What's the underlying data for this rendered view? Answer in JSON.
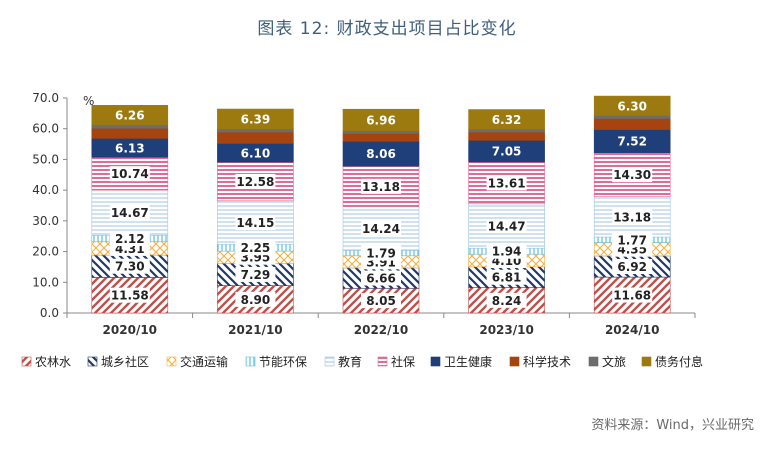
{
  "figure_title": "图表 12: 财政支出项目占比变化",
  "source_note": "资料来源：Wind，兴业研究",
  "colors": {
    "农林水": "#c0504d",
    "城乡社区": "#1f3864",
    "交通运输": "#f5b041",
    "节能环保": "#5bc0de",
    "教育": "#9ec5e8",
    "社保": "#e06b97",
    "卫生健康": "#1f3f7a",
    "科学技术": "#a5440f",
    "文旅": "#6d6d6d",
    "债务付息": "#9c7a10"
  },
  "chart_data": {
    "type": "bar",
    "stacked": true,
    "categories": [
      "2020/10",
      "2021/10",
      "2022/10",
      "2023/10",
      "2024/10"
    ],
    "ylabel": "%",
    "ylim": [
      0,
      70
    ],
    "yticks": [
      "0.0",
      "10.0",
      "20.0",
      "30.0",
      "40.0",
      "50.0",
      "60.0",
      "70.0"
    ],
    "legend_position": "bottom",
    "series": [
      {
        "name": "农林水",
        "values": [
          11.58,
          8.9,
          8.05,
          8.24,
          11.68
        ],
        "labeled": true
      },
      {
        "name": "城乡社区",
        "values": [
          7.3,
          7.29,
          6.66,
          6.81,
          6.92
        ],
        "labeled": true
      },
      {
        "name": "交通运输",
        "values": [
          4.31,
          3.95,
          3.91,
          4.1,
          4.35
        ],
        "labeled": true
      },
      {
        "name": "节能环保",
        "values": [
          2.12,
          2.25,
          1.79,
          1.94,
          1.77
        ],
        "labeled": true
      },
      {
        "name": "教育",
        "values": [
          14.67,
          14.15,
          14.24,
          14.47,
          13.18
        ],
        "labeled": true
      },
      {
        "name": "社保",
        "values": [
          10.74,
          12.58,
          13.18,
          13.61,
          14.3
        ],
        "labeled": true
      },
      {
        "name": "卫生健康",
        "values": [
          6.13,
          6.1,
          8.06,
          7.05,
          7.52
        ],
        "labeled": true
      },
      {
        "name": "科学技术",
        "values": [
          3.3,
          3.7,
          2.6,
          2.7,
          3.6
        ],
        "labeled": false
      },
      {
        "name": "文旅",
        "values": [
          1.2,
          1.1,
          0.9,
          1.0,
          1.0
        ],
        "labeled": false
      },
      {
        "name": "债务付息",
        "values": [
          6.26,
          6.39,
          6.96,
          6.32,
          6.3
        ],
        "labeled": true
      }
    ]
  }
}
